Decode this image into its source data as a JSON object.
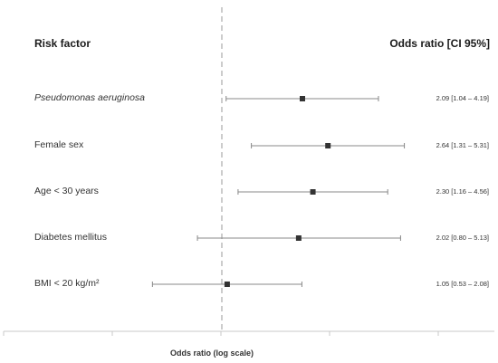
{
  "chart_data": {
    "type": "forest",
    "header_left": "Risk factor",
    "header_right": "Odds ratio [CI 95%]",
    "xlabel": "Odds ratio (log scale)",
    "x_scale": "log",
    "reference_line": 1,
    "rows": [
      {
        "label": "Pseudomonas aeruginosa",
        "italic": true,
        "or": 2.09,
        "lo": 1.04,
        "hi": 4.19,
        "ci_text": "2.09 [1.04 – 4.19]"
      },
      {
        "label": "Female sex",
        "italic": false,
        "or": 2.64,
        "lo": 1.31,
        "hi": 5.31,
        "ci_text": "2.64 [1.31 – 5.31]"
      },
      {
        "label": "Age < 30 years",
        "italic": false,
        "or": 2.3,
        "lo": 1.16,
        "hi": 4.56,
        "ci_text": "2.30 [1.16 – 4.56]"
      },
      {
        "label": "Diabetes mellitus",
        "italic": false,
        "or": 2.02,
        "lo": 0.8,
        "hi": 5.13,
        "ci_text": "2.02 [0.80 – 5.13]"
      },
      {
        "label": "BMI < 20 kg/m²",
        "italic": false,
        "or": 1.05,
        "lo": 0.53,
        "hi": 2.08,
        "ci_text": "1.05 [0.53 – 2.08]"
      }
    ],
    "colors": {
      "marker": "#333333",
      "line": "#888888",
      "ref_line": "#999999",
      "axis": "#c8c8c8"
    }
  }
}
